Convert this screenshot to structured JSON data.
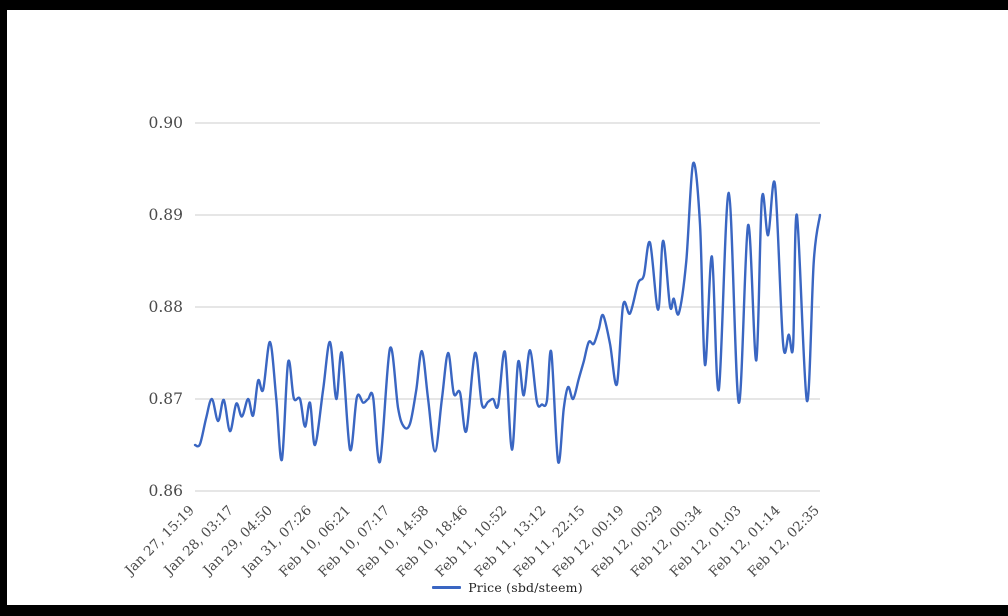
{
  "page": {
    "frame_color": "#000000",
    "background": "#ffffff"
  },
  "chart_data": {
    "type": "line",
    "title": "",
    "xlabel": "",
    "ylabel": "",
    "ylim": [
      0.86,
      0.9
    ],
    "y_ticks": [
      "0.90",
      "0.89",
      "0.88",
      "0.87",
      "0.86"
    ],
    "x_tick_labels": [
      "Jan 27, 15:19",
      "Jan 28, 03:17",
      "Jan 29, 04:50",
      "Jan 31, 07:26",
      "Feb 10, 06:21",
      "Feb 10, 07:17",
      "Feb 10, 14:58",
      "Feb 10, 18:46",
      "Feb 11, 10:52",
      "Feb 11, 13:12",
      "Feb 11, 22:15",
      "Feb 12, 00:19",
      "Feb 12, 00:29",
      "Feb 12, 00:34",
      "Feb 12, 01:03",
      "Feb 12, 01:14",
      "Feb 12, 02:35"
    ],
    "grid": true,
    "legend": {
      "label": "Price (sbd/steem)",
      "position": "bottom"
    },
    "colors": {
      "line": "#3A66C2",
      "grid": "#CCCCCC",
      "tick_text": "#4A4A4A",
      "legend_text": "#222222"
    },
    "series": [
      {
        "name": "Price (sbd/steem)",
        "color": "#3A66C2",
        "x_unit": "percent_of_axis",
        "points": [
          [
            0.0,
            0.865
          ],
          [
            0.8,
            0.8651
          ],
          [
            1.8,
            0.868
          ],
          [
            2.7,
            0.87
          ],
          [
            3.7,
            0.8676
          ],
          [
            4.6,
            0.8699
          ],
          [
            5.6,
            0.8665
          ],
          [
            6.6,
            0.8695
          ],
          [
            7.5,
            0.8681
          ],
          [
            8.5,
            0.87
          ],
          [
            9.3,
            0.8682
          ],
          [
            10.1,
            0.872
          ],
          [
            10.9,
            0.871
          ],
          [
            12.0,
            0.8762
          ],
          [
            13.0,
            0.87
          ],
          [
            13.9,
            0.8634
          ],
          [
            14.9,
            0.874
          ],
          [
            15.8,
            0.8701
          ],
          [
            16.8,
            0.87
          ],
          [
            17.6,
            0.867
          ],
          [
            18.4,
            0.8696
          ],
          [
            19.2,
            0.865
          ],
          [
            20.5,
            0.871
          ],
          [
            21.6,
            0.8762
          ],
          [
            22.6,
            0.87
          ],
          [
            23.5,
            0.875
          ],
          [
            24.8,
            0.8645
          ],
          [
            25.9,
            0.8702
          ],
          [
            26.9,
            0.8696
          ],
          [
            27.7,
            0.87
          ],
          [
            28.5,
            0.8702
          ],
          [
            29.6,
            0.8632
          ],
          [
            31.2,
            0.8755
          ],
          [
            32.5,
            0.869
          ],
          [
            33.4,
            0.867
          ],
          [
            34.4,
            0.8673
          ],
          [
            35.4,
            0.871
          ],
          [
            36.3,
            0.8752
          ],
          [
            37.3,
            0.87
          ],
          [
            38.4,
            0.8643
          ],
          [
            39.5,
            0.87
          ],
          [
            40.5,
            0.875
          ],
          [
            41.4,
            0.8706
          ],
          [
            42.4,
            0.8707
          ],
          [
            43.4,
            0.8665
          ],
          [
            44.8,
            0.875
          ],
          [
            45.9,
            0.8694
          ],
          [
            46.9,
            0.8697
          ],
          [
            47.7,
            0.87
          ],
          [
            48.5,
            0.8693
          ],
          [
            49.6,
            0.8751
          ],
          [
            50.7,
            0.8645
          ],
          [
            51.7,
            0.874
          ],
          [
            52.6,
            0.8704
          ],
          [
            53.6,
            0.8753
          ],
          [
            54.7,
            0.8697
          ],
          [
            55.5,
            0.8694
          ],
          [
            56.3,
            0.8698
          ],
          [
            57.0,
            0.8751
          ],
          [
            58.1,
            0.8632
          ],
          [
            59.0,
            0.869
          ],
          [
            59.7,
            0.8713
          ],
          [
            60.5,
            0.87
          ],
          [
            61.4,
            0.8722
          ],
          [
            62.2,
            0.8741
          ],
          [
            63.0,
            0.8762
          ],
          [
            63.8,
            0.876
          ],
          [
            64.6,
            0.8776
          ],
          [
            65.3,
            0.8791
          ],
          [
            66.4,
            0.876
          ],
          [
            67.5,
            0.8716
          ],
          [
            68.5,
            0.8802
          ],
          [
            69.6,
            0.8793
          ],
          [
            70.9,
            0.8826
          ],
          [
            71.8,
            0.8834
          ],
          [
            72.8,
            0.887
          ],
          [
            74.1,
            0.8797
          ],
          [
            74.9,
            0.8872
          ],
          [
            76.0,
            0.8801
          ],
          [
            76.6,
            0.8809
          ],
          [
            77.4,
            0.8793
          ],
          [
            78.6,
            0.885
          ],
          [
            79.7,
            0.8956
          ],
          [
            80.8,
            0.889
          ],
          [
            81.6,
            0.8737
          ],
          [
            82.7,
            0.8855
          ],
          [
            83.8,
            0.871
          ],
          [
            85.4,
            0.8924
          ],
          [
            87.0,
            0.8696
          ],
          [
            88.5,
            0.8889
          ],
          [
            89.8,
            0.8742
          ],
          [
            90.7,
            0.8918
          ],
          [
            91.7,
            0.8878
          ],
          [
            92.8,
            0.8933
          ],
          [
            94.1,
            0.876
          ],
          [
            95.0,
            0.877
          ],
          [
            95.7,
            0.8758
          ],
          [
            96.3,
            0.89
          ],
          [
            97.9,
            0.8698
          ],
          [
            99.0,
            0.885
          ],
          [
            100.0,
            0.89
          ]
        ]
      }
    ]
  }
}
